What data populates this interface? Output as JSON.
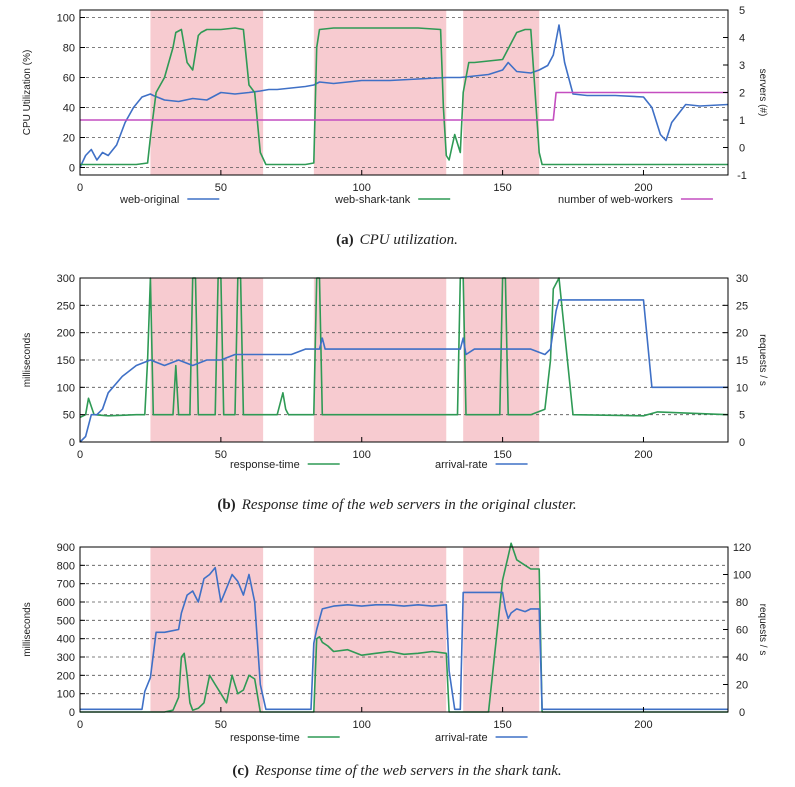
{
  "colors": {
    "shade": "#f7cbd0",
    "blue": "#3f70c6",
    "green": "#2f9a55",
    "magenta": "#c44ec0",
    "grid": "#555555",
    "axis": "#000000"
  },
  "chart_data": [
    {
      "id": "a",
      "type": "line",
      "caption_label": "(a)",
      "caption_text": "CPU utilization.",
      "ylabel": "CPU Utilization (%)",
      "y2label": "servers (#)",
      "xlim": [
        0,
        230
      ],
      "ylim": [
        -5,
        105
      ],
      "y2lim": [
        -1,
        5
      ],
      "xticks": [
        0,
        50,
        100,
        150,
        200
      ],
      "yticks": [
        0,
        20,
        40,
        60,
        80,
        100
      ],
      "y2ticks": [
        -1,
        0,
        1,
        2,
        3,
        4,
        5
      ],
      "shaded_x": [
        [
          25,
          65
        ],
        [
          83,
          130
        ],
        [
          136,
          163
        ]
      ],
      "legend": [
        "web-original",
        "web-shark-tank",
        "number of web-workers"
      ],
      "series": [
        {
          "name": "web-original",
          "color": "blue",
          "axis": "y",
          "x": [
            0,
            2,
            4,
            6,
            8,
            10,
            13,
            16,
            19,
            22,
            25,
            26,
            30,
            35,
            40,
            45,
            50,
            55,
            60,
            64,
            67,
            70,
            75,
            80,
            83,
            85,
            90,
            95,
            100,
            110,
            120,
            130,
            135,
            140,
            145,
            150,
            152,
            155,
            160,
            163,
            166,
            168,
            170,
            172,
            175,
            180,
            190,
            200,
            203,
            206,
            208,
            210,
            215,
            220,
            230
          ],
          "y": [
            0,
            8,
            12,
            5,
            10,
            8,
            15,
            30,
            40,
            47,
            49,
            48,
            45,
            44,
            46,
            45,
            50,
            49,
            50,
            51,
            52,
            52,
            53,
            54,
            55,
            57,
            56,
            57,
            58,
            58,
            59,
            60,
            60,
            61,
            62,
            65,
            70,
            64,
            63,
            65,
            68,
            75,
            95,
            70,
            49,
            48,
            48,
            47,
            40,
            22,
            18,
            30,
            42,
            41,
            42
          ]
        },
        {
          "name": "web-shark-tank",
          "color": "green",
          "axis": "y",
          "x": [
            0,
            10,
            20,
            24,
            25,
            27,
            30,
            33,
            34,
            36,
            38,
            40,
            42,
            43,
            45,
            50,
            55,
            58,
            60,
            62,
            64,
            66,
            70,
            80,
            83,
            84,
            85,
            90,
            100,
            110,
            120,
            128,
            129,
            130,
            131,
            133,
            135,
            136,
            138,
            140,
            150,
            155,
            158,
            160,
            163,
            164,
            166,
            180,
            200,
            230
          ],
          "y": [
            2,
            2,
            2,
            3,
            20,
            50,
            60,
            80,
            90,
            92,
            70,
            65,
            88,
            90,
            92,
            92,
            93,
            92,
            55,
            50,
            10,
            2,
            2,
            2,
            3,
            80,
            92,
            93,
            93,
            93,
            93,
            92,
            40,
            8,
            5,
            22,
            10,
            50,
            70,
            70,
            72,
            90,
            92,
            92,
            10,
            2,
            2,
            2,
            2,
            2
          ]
        },
        {
          "name": "number of web-workers",
          "color": "magenta",
          "axis": "y2",
          "x": [
            0,
            168,
            169,
            230
          ],
          "y": [
            1,
            1,
            2,
            2
          ]
        }
      ]
    },
    {
      "id": "b",
      "type": "line",
      "caption_label": "(b)",
      "caption_text": "Response time of the web servers in the original cluster.",
      "ylabel": "milliseconds",
      "y2label": "requests / s",
      "xlim": [
        0,
        230
      ],
      "ylim": [
        0,
        300
      ],
      "y2lim": [
        0,
        30
      ],
      "xticks": [
        0,
        50,
        100,
        150,
        200
      ],
      "yticks": [
        0,
        50,
        100,
        150,
        200,
        250,
        300
      ],
      "y2ticks": [
        0,
        5,
        10,
        15,
        20,
        25,
        30
      ],
      "shaded_x": [
        [
          25,
          65
        ],
        [
          83,
          130
        ],
        [
          136,
          163
        ]
      ],
      "legend": [
        "response-time",
        "arrival-rate"
      ],
      "series": [
        {
          "name": "response-time",
          "color": "green",
          "axis": "y",
          "x": [
            0,
            2,
            3,
            5,
            10,
            20,
            23,
            24,
            25,
            26,
            30,
            33,
            34,
            35,
            36,
            39,
            40,
            41,
            42,
            43,
            48,
            49,
            50,
            51,
            55,
            56,
            57,
            58,
            59,
            70,
            72,
            73,
            74,
            80,
            83,
            84,
            85,
            86,
            87,
            90,
            100,
            110,
            120,
            130,
            134,
            135,
            136,
            137,
            138,
            140,
            149,
            150,
            151,
            152,
            153,
            160,
            165,
            167,
            168,
            170,
            172,
            175,
            200,
            205,
            230
          ],
          "y": [
            45,
            50,
            80,
            50,
            48,
            50,
            50,
            150,
            300,
            50,
            50,
            50,
            140,
            50,
            50,
            50,
            300,
            300,
            50,
            50,
            50,
            300,
            300,
            50,
            50,
            300,
            300,
            50,
            50,
            50,
            90,
            60,
            50,
            50,
            50,
            300,
            300,
            50,
            50,
            50,
            50,
            50,
            50,
            50,
            50,
            300,
            300,
            50,
            50,
            50,
            50,
            300,
            300,
            50,
            50,
            50,
            60,
            150,
            280,
            300,
            200,
            50,
            48,
            55,
            50
          ]
        },
        {
          "name": "arrival-rate",
          "color": "blue",
          "axis": "y2",
          "x": [
            0,
            2,
            4,
            6,
            8,
            10,
            15,
            20,
            25,
            30,
            35,
            40,
            45,
            50,
            55,
            60,
            65,
            70,
            75,
            80,
            85,
            86,
            87,
            90,
            100,
            110,
            120,
            130,
            135,
            136,
            137,
            140,
            150,
            160,
            165,
            167,
            169,
            170,
            172,
            180,
            190,
            200,
            203,
            206,
            210,
            220,
            230
          ],
          "y": [
            0,
            1,
            5,
            5,
            6,
            9,
            12,
            14,
            15,
            14,
            15,
            14,
            15,
            15,
            16,
            16,
            16,
            16,
            16,
            17,
            17,
            19,
            17,
            17,
            17,
            17,
            17,
            17,
            17,
            19,
            16,
            17,
            17,
            17,
            16,
            17,
            24,
            26,
            26,
            26,
            26,
            26,
            10,
            10,
            10,
            10,
            10
          ]
        }
      ]
    },
    {
      "id": "c",
      "type": "line",
      "caption_label": "(c)",
      "caption_text": "Response time of the web servers in the shark tank.",
      "ylabel": "milliseconds",
      "y2label": "requests / s",
      "xlim": [
        0,
        230
      ],
      "ylim": [
        0,
        900
      ],
      "y2lim": [
        0,
        120
      ],
      "xticks": [
        0,
        50,
        100,
        150,
        200
      ],
      "yticks": [
        0,
        100,
        200,
        300,
        400,
        500,
        600,
        700,
        800,
        900
      ],
      "y2ticks": [
        0,
        20,
        40,
        60,
        80,
        100,
        120
      ],
      "shaded_x": [
        [
          25,
          65
        ],
        [
          83,
          130
        ],
        [
          136,
          163
        ]
      ],
      "legend": [
        "response-time",
        "arrival-rate"
      ],
      "series": [
        {
          "name": "response-time",
          "color": "green",
          "axis": "y",
          "x": [
            0,
            20,
            24,
            25,
            30,
            33,
            35,
            36,
            37,
            38,
            39,
            40,
            42,
            44,
            46,
            48,
            50,
            52,
            54,
            56,
            58,
            60,
            62,
            64,
            66,
            80,
            83,
            84,
            85,
            86,
            88,
            90,
            95,
            100,
            105,
            110,
            115,
            120,
            125,
            130,
            131,
            135,
            140,
            145,
            150,
            152,
            153,
            155,
            158,
            160,
            163,
            164,
            166,
            200,
            230
          ],
          "y": [
            0,
            0,
            0,
            0,
            0,
            10,
            80,
            300,
            320,
            200,
            50,
            10,
            20,
            50,
            200,
            150,
            100,
            50,
            200,
            100,
            120,
            200,
            180,
            0,
            0,
            0,
            0,
            400,
            410,
            380,
            360,
            330,
            340,
            310,
            320,
            330,
            315,
            320,
            330,
            320,
            0,
            0,
            0,
            0,
            720,
            850,
            920,
            830,
            800,
            780,
            780,
            0,
            0,
            0,
            0
          ]
        },
        {
          "name": "arrival-rate",
          "color": "blue",
          "axis": "y2",
          "x": [
            0,
            20,
            22,
            23,
            25,
            27,
            30,
            35,
            36,
            38,
            40,
            42,
            44,
            46,
            48,
            50,
            52,
            54,
            56,
            58,
            60,
            62,
            64,
            66,
            80,
            82,
            83,
            84,
            86,
            90,
            95,
            100,
            105,
            110,
            115,
            120,
            125,
            130,
            131,
            133,
            135,
            136,
            140,
            145,
            150,
            151,
            152,
            153,
            155,
            158,
            160,
            162,
            163,
            164,
            166,
            200,
            230
          ],
          "y": [
            2,
            2,
            2,
            15,
            25,
            58,
            58,
            60,
            72,
            85,
            88,
            80,
            97,
            100,
            105,
            80,
            90,
            100,
            95,
            85,
            100,
            80,
            20,
            2,
            2,
            2,
            50,
            60,
            75,
            77,
            78,
            77,
            78,
            78,
            77,
            78,
            77,
            78,
            30,
            2,
            2,
            87,
            87,
            87,
            87,
            75,
            68,
            72,
            75,
            73,
            75,
            75,
            75,
            2,
            2,
            2,
            2
          ]
        }
      ]
    }
  ]
}
